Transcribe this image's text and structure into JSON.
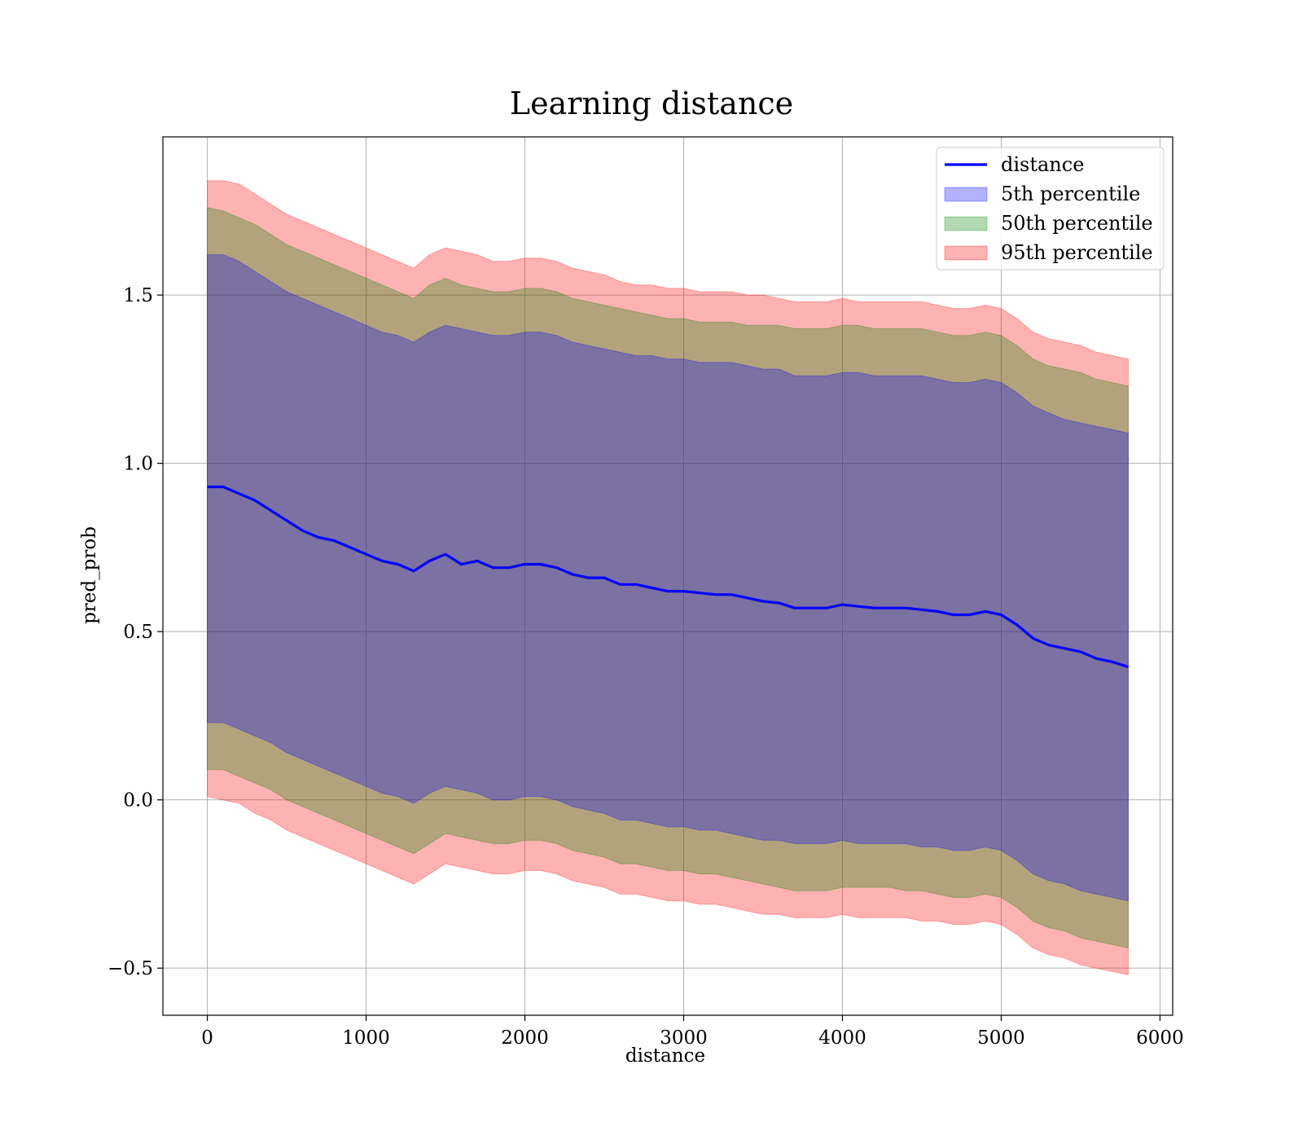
{
  "chart_data": {
    "type": "line",
    "title": "Learning distance",
    "xlabel": "distance",
    "ylabel": "pred_prob",
    "xlim": [
      -280,
      6080
    ],
    "ylim": [
      -0.64,
      1.97
    ],
    "xticks": [
      0,
      1000,
      2000,
      3000,
      4000,
      5000,
      6000
    ],
    "xtick_labels": [
      "0",
      "1000",
      "2000",
      "3000",
      "4000",
      "5000",
      "6000"
    ],
    "yticks": [
      -0.5,
      0.0,
      0.5,
      1.0,
      1.5
    ],
    "ytick_labels": [
      "−0.5",
      "0.0",
      "0.5",
      "1.0",
      "1.5"
    ],
    "grid": true,
    "legend_position": "top-right",
    "legend": [
      {
        "label": "distance",
        "kind": "line",
        "color": "#0000ff"
      },
      {
        "label": "5th percentile",
        "kind": "patch",
        "color": "#0000ff"
      },
      {
        "label": "50th percentile",
        "kind": "patch",
        "color": "#008000"
      },
      {
        "label": "95th percentile",
        "kind": "patch",
        "color": "#ff0000"
      }
    ],
    "x": [
      0,
      100,
      200,
      300,
      400,
      500,
      600,
      700,
      800,
      900,
      1000,
      1100,
      1200,
      1300,
      1400,
      1500,
      1600,
      1700,
      1800,
      1900,
      2000,
      2100,
      2200,
      2300,
      2400,
      2500,
      2600,
      2700,
      2800,
      2900,
      3000,
      3100,
      3200,
      3300,
      3400,
      3500,
      3600,
      3700,
      3800,
      3900,
      4000,
      4100,
      4200,
      4300,
      4400,
      4500,
      4600,
      4700,
      4800,
      4900,
      5000,
      5100,
      5200,
      5300,
      5400,
      5500,
      5600,
      5700,
      5800
    ],
    "series": [
      {
        "name": "distance",
        "color": "#0000ff",
        "values": [
          0.93,
          0.93,
          0.91,
          0.89,
          0.86,
          0.83,
          0.8,
          0.78,
          0.77,
          0.75,
          0.73,
          0.71,
          0.7,
          0.68,
          0.71,
          0.73,
          0.7,
          0.71,
          0.69,
          0.69,
          0.7,
          0.7,
          0.69,
          0.67,
          0.66,
          0.66,
          0.64,
          0.64,
          0.63,
          0.62,
          0.62,
          0.615,
          0.61,
          0.61,
          0.6,
          0.59,
          0.585,
          0.57,
          0.57,
          0.57,
          0.58,
          0.575,
          0.57,
          0.57,
          0.57,
          0.565,
          0.56,
          0.55,
          0.55,
          0.56,
          0.55,
          0.52,
          0.48,
          0.46,
          0.45,
          0.44,
          0.42,
          0.41,
          0.395
        ]
      }
    ],
    "bands": [
      {
        "name": "95th percentile",
        "color": "#ff0000",
        "upper": [
          1.84,
          1.84,
          1.83,
          1.8,
          1.77,
          1.74,
          1.72,
          1.7,
          1.68,
          1.66,
          1.64,
          1.62,
          1.6,
          1.58,
          1.62,
          1.64,
          1.63,
          1.62,
          1.6,
          1.6,
          1.61,
          1.61,
          1.6,
          1.58,
          1.57,
          1.56,
          1.54,
          1.53,
          1.53,
          1.52,
          1.52,
          1.51,
          1.51,
          1.51,
          1.5,
          1.5,
          1.49,
          1.48,
          1.48,
          1.48,
          1.49,
          1.48,
          1.48,
          1.48,
          1.48,
          1.48,
          1.47,
          1.46,
          1.46,
          1.47,
          1.46,
          1.43,
          1.39,
          1.37,
          1.36,
          1.35,
          1.33,
          1.32,
          1.31
        ],
        "lower": [
          0.01,
          0.0,
          -0.01,
          -0.04,
          -0.06,
          -0.09,
          -0.11,
          -0.13,
          -0.15,
          -0.17,
          -0.19,
          -0.21,
          -0.23,
          -0.25,
          -0.22,
          -0.19,
          -0.2,
          -0.21,
          -0.22,
          -0.22,
          -0.21,
          -0.21,
          -0.22,
          -0.24,
          -0.25,
          -0.26,
          -0.28,
          -0.28,
          -0.29,
          -0.3,
          -0.3,
          -0.31,
          -0.31,
          -0.32,
          -0.33,
          -0.34,
          -0.34,
          -0.35,
          -0.35,
          -0.35,
          -0.34,
          -0.35,
          -0.35,
          -0.35,
          -0.35,
          -0.36,
          -0.36,
          -0.37,
          -0.37,
          -0.36,
          -0.37,
          -0.4,
          -0.44,
          -0.46,
          -0.47,
          -0.49,
          -0.5,
          -0.51,
          -0.52
        ]
      },
      {
        "name": "50th percentile",
        "color": "#008000",
        "upper": [
          1.76,
          1.75,
          1.73,
          1.71,
          1.68,
          1.65,
          1.63,
          1.61,
          1.59,
          1.57,
          1.55,
          1.53,
          1.51,
          1.49,
          1.53,
          1.55,
          1.53,
          1.52,
          1.51,
          1.51,
          1.52,
          1.52,
          1.51,
          1.49,
          1.48,
          1.47,
          1.46,
          1.45,
          1.44,
          1.43,
          1.43,
          1.42,
          1.42,
          1.42,
          1.41,
          1.41,
          1.41,
          1.4,
          1.4,
          1.4,
          1.41,
          1.41,
          1.4,
          1.4,
          1.4,
          1.4,
          1.39,
          1.38,
          1.38,
          1.39,
          1.38,
          1.35,
          1.31,
          1.29,
          1.28,
          1.27,
          1.25,
          1.24,
          1.23
        ],
        "lower": [
          0.09,
          0.09,
          0.07,
          0.05,
          0.03,
          0.0,
          -0.02,
          -0.04,
          -0.06,
          -0.08,
          -0.1,
          -0.12,
          -0.14,
          -0.16,
          -0.13,
          -0.1,
          -0.11,
          -0.12,
          -0.13,
          -0.13,
          -0.12,
          -0.12,
          -0.13,
          -0.15,
          -0.16,
          -0.17,
          -0.19,
          -0.19,
          -0.2,
          -0.21,
          -0.21,
          -0.22,
          -0.22,
          -0.23,
          -0.24,
          -0.25,
          -0.26,
          -0.27,
          -0.27,
          -0.27,
          -0.26,
          -0.26,
          -0.26,
          -0.26,
          -0.27,
          -0.27,
          -0.28,
          -0.29,
          -0.29,
          -0.28,
          -0.29,
          -0.32,
          -0.36,
          -0.38,
          -0.39,
          -0.41,
          -0.42,
          -0.43,
          -0.44
        ]
      },
      {
        "name": "5th percentile",
        "color": "#0000ff",
        "upper": [
          1.62,
          1.62,
          1.6,
          1.57,
          1.54,
          1.51,
          1.49,
          1.47,
          1.45,
          1.43,
          1.41,
          1.39,
          1.38,
          1.36,
          1.39,
          1.41,
          1.4,
          1.39,
          1.38,
          1.38,
          1.39,
          1.39,
          1.38,
          1.36,
          1.35,
          1.34,
          1.33,
          1.32,
          1.32,
          1.31,
          1.31,
          1.3,
          1.3,
          1.3,
          1.29,
          1.28,
          1.28,
          1.26,
          1.26,
          1.26,
          1.27,
          1.27,
          1.26,
          1.26,
          1.26,
          1.26,
          1.25,
          1.24,
          1.24,
          1.25,
          1.24,
          1.21,
          1.17,
          1.15,
          1.13,
          1.12,
          1.11,
          1.1,
          1.09
        ],
        "lower": [
          0.23,
          0.23,
          0.21,
          0.19,
          0.17,
          0.14,
          0.12,
          0.1,
          0.08,
          0.06,
          0.04,
          0.02,
          0.01,
          -0.01,
          0.02,
          0.04,
          0.03,
          0.02,
          0.0,
          0.0,
          0.01,
          0.01,
          0.0,
          -0.02,
          -0.03,
          -0.04,
          -0.06,
          -0.06,
          -0.07,
          -0.08,
          -0.08,
          -0.09,
          -0.09,
          -0.1,
          -0.11,
          -0.12,
          -0.12,
          -0.13,
          -0.13,
          -0.13,
          -0.12,
          -0.13,
          -0.13,
          -0.13,
          -0.13,
          -0.14,
          -0.14,
          -0.15,
          -0.15,
          -0.14,
          -0.15,
          -0.18,
          -0.22,
          -0.24,
          -0.25,
          -0.27,
          -0.28,
          -0.29,
          -0.3
        ]
      }
    ]
  }
}
